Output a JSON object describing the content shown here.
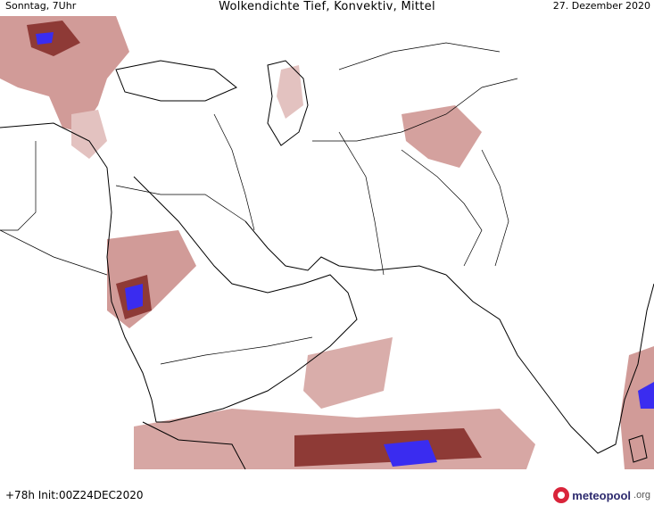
{
  "header": {
    "left": "Sonntag, 7Uhr",
    "center": "Wolkendichte   Tief, Konvektiv, Mittel",
    "right": "27. Dezember 2020"
  },
  "footer": {
    "run": "+78h  Init:00Z24DEC2020",
    "brand_name": "meteopool",
    "brand_tld": ".org"
  },
  "map": {
    "colors": {
      "low_density": "#e3c2c0",
      "mid_density": "#c98a86",
      "high_density": "#8e3a36",
      "very_high_density": "#3a2cf0",
      "coastline": "#000000",
      "borders": "#000000"
    }
  }
}
